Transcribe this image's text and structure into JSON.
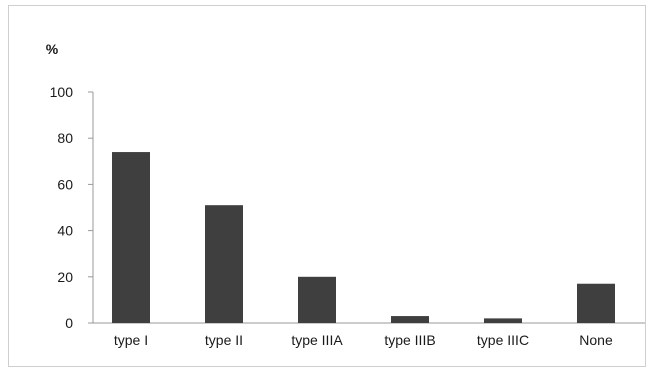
{
  "chart_data": {
    "type": "bar",
    "ylabel": "%",
    "categories": [
      "type I",
      "type II",
      "type IIIA",
      "type IIIB",
      "type IIIC",
      "None"
    ],
    "values": [
      74,
      51,
      20,
      3,
      2,
      17
    ],
    "ylim": [
      0,
      100
    ],
    "yticks": [
      0,
      20,
      40,
      60,
      80,
      100
    ],
    "grid": false,
    "bar_color": "#3f3f3f"
  }
}
